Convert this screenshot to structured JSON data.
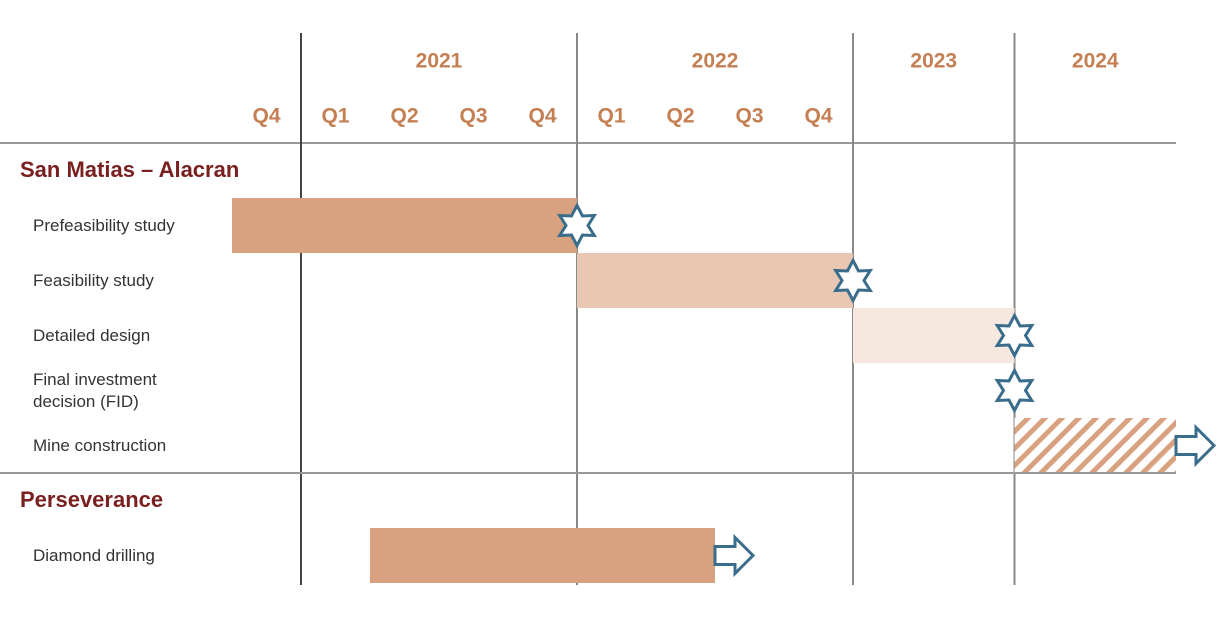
{
  "chart_data": {
    "type": "gantt",
    "xlim": [
      2020.75,
      2025
    ],
    "xticks": [
      2021,
      2022,
      2023,
      2024
    ],
    "quarter_ticks": [
      {
        "value": 2020.75,
        "label": "Q4"
      },
      {
        "value": 2021,
        "label": "Q1"
      },
      {
        "value": 2021.25,
        "label": "Q2"
      },
      {
        "value": 2021.5,
        "label": "Q3"
      },
      {
        "value": 2021.75,
        "label": "Q4"
      },
      {
        "value": 2022,
        "label": "Q1"
      },
      {
        "value": 2022.25,
        "label": "Q2"
      },
      {
        "value": 2022.5,
        "label": "Q3"
      },
      {
        "value": 2022.75,
        "label": "Q4"
      }
    ],
    "groups": [
      {
        "name": "San Matias – Alacran",
        "tasks": [
          {
            "name": "Prefeasibility study",
            "start": 2020.75,
            "end": 2022,
            "color": "#d8a17f",
            "milestone": true
          },
          {
            "name": "Feasibility study",
            "start": 2022,
            "end": 2023,
            "color": "#e8c8b2",
            "milestone": true
          },
          {
            "name": "Detailed design",
            "start": 2023,
            "end": 2024,
            "color": "#f6e8de",
            "milestone": true
          },
          {
            "name": "Final investment decision (FID)",
            "end": 2024,
            "milestone": true
          },
          {
            "name": "Mine construction",
            "start": 2024,
            "end": 2025,
            "color": "#d8a17f",
            "pattern": "hatch",
            "arrow": true
          }
        ]
      },
      {
        "name": "Perseverance",
        "tasks": [
          {
            "name": "Diamond drilling",
            "start": 2021.25,
            "end": 2022.5,
            "color": "#d8a17f",
            "arrow": true
          }
        ]
      }
    ],
    "milestone_color": "#3a6d8c"
  }
}
